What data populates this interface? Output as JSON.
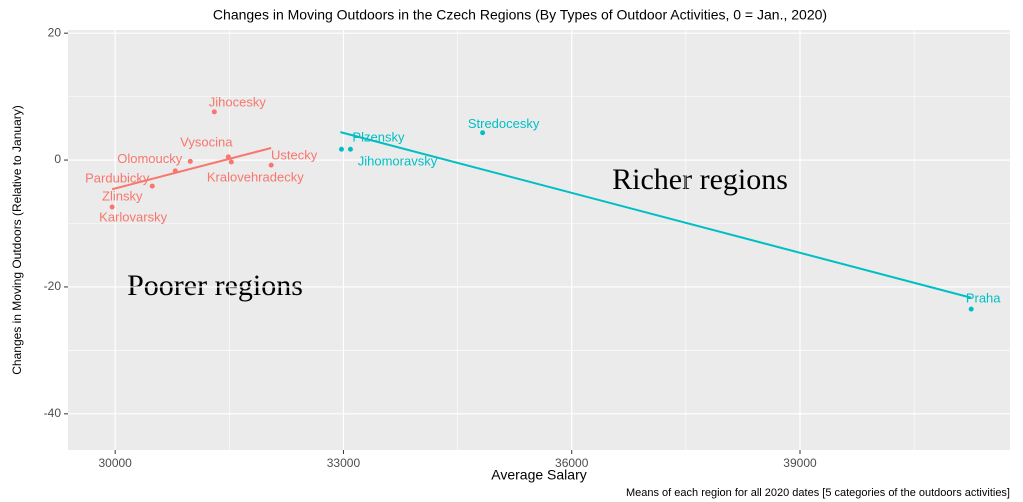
{
  "chart_data": {
    "type": "scatter",
    "title": "Changes in Moving Outdoors in the Czech Regions (By Types of Outdoor Activities, 0 = Jan., 2020)",
    "x_label": "Average Salary",
    "y_label": "Changes in Moving Outdoors (Relative to January)",
    "caption": "Means of each region for all 2020 dates [5 categories of the outdoors activities]",
    "annotations": [
      "Poorer regions",
      "Richer regions"
    ],
    "xlim": [
      29380,
      41760
    ],
    "ylim": [
      -45.7,
      20.5
    ],
    "xticks": [
      30000,
      33000,
      36000,
      39000
    ],
    "yticks": [
      20,
      0,
      -20,
      -40
    ],
    "xminor": [
      31500,
      34500,
      37500,
      40500
    ],
    "yminor": [
      10,
      -10,
      -30
    ],
    "grid": true,
    "series": [
      {
        "color": "#F8766D",
        "labels": [
          "Jihocesky",
          "Olomoucky",
          "Vysocina",
          "Kralovehradecky",
          "Ustecky",
          "Pardubicky",
          "Zlinsky",
          "Karlovarsky"
        ],
        "x": [
          31303,
          30987,
          31487,
          31526,
          32050,
          30790,
          30487,
          29960
        ],
        "values": [
          7.6,
          -0.2,
          0.5,
          -0.3,
          -0.8,
          -1.7,
          -4.1,
          -7.4
        ],
        "fit_x": [
          29960,
          32050
        ],
        "fit_y": [
          -4.6,
          1.9
        ]
      },
      {
        "color": "#00BFC4",
        "labels": [
          "Plzensky",
          "Jihomoravsky",
          "Stredocesky",
          "Praha"
        ],
        "x": [
          33092,
          32974,
          34829,
          41250
        ],
        "values": [
          1.7,
          1.7,
          4.3,
          -23.5
        ],
        "fit_x": [
          32960,
          41250
        ],
        "fit_y": [
          4.4,
          -21.7
        ]
      }
    ]
  }
}
